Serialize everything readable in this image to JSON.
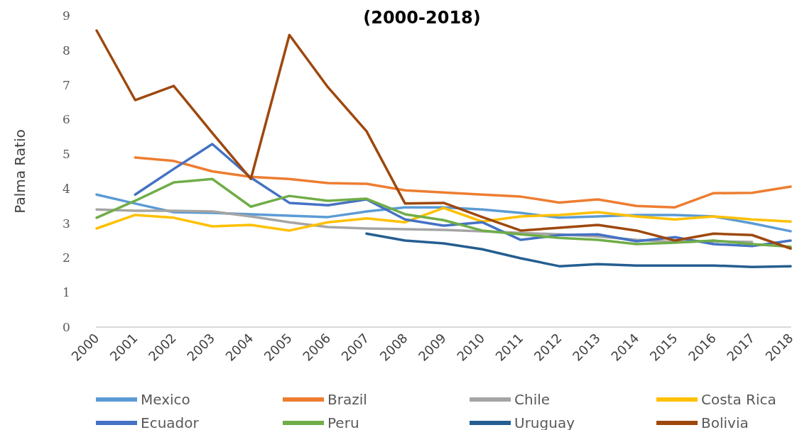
{
  "chart_data": {
    "type": "line",
    "title": "(2000-2018)",
    "ylabel": "Palma Ratio",
    "categories": [
      "2000",
      "2001",
      "2002",
      "2003",
      "2004",
      "2005",
      "2006",
      "2007",
      "2008",
      "2009",
      "2010",
      "2011",
      "2012",
      "2013",
      "2014",
      "2015",
      "2016",
      "2017",
      "2018"
    ],
    "ylim": [
      0,
      9
    ],
    "yticks": [
      0,
      1,
      2,
      3,
      4,
      5,
      6,
      7,
      8,
      9
    ],
    "grid": false,
    "legend": "bottom",
    "marker": "none",
    "line_style": "solid",
    "series": [
      {
        "name": "Mexico",
        "color": "#5b9bd5",
        "values": [
          3.83,
          3.57,
          3.32,
          3.3,
          3.26,
          3.22,
          3.18,
          3.34,
          3.46,
          3.46,
          3.4,
          3.3,
          3.16,
          3.2,
          3.24,
          3.24,
          3.2,
          3.0,
          2.77
        ]
      },
      {
        "name": "Brazil",
        "color": "#ed7d31",
        "values": [
          null,
          4.9,
          4.8,
          4.5,
          4.34,
          4.28,
          4.16,
          4.14,
          3.95,
          3.89,
          3.83,
          3.77,
          3.6,
          3.69,
          3.5,
          3.46,
          3.87,
          3.88,
          4.06
        ]
      },
      {
        "name": "Chile",
        "color": "#a5a5a5",
        "values": [
          3.4,
          3.36,
          3.36,
          3.34,
          3.2,
          3.03,
          2.89,
          2.85,
          2.83,
          2.81,
          2.77,
          2.72,
          2.68,
          2.62,
          2.52,
          2.46,
          2.48,
          2.46,
          null
        ]
      },
      {
        "name": "Costa Rica",
        "color": "#ffc000",
        "values": [
          2.85,
          3.24,
          3.16,
          2.91,
          2.95,
          2.79,
          3.03,
          3.14,
          3.03,
          3.44,
          3.05,
          3.2,
          3.24,
          3.32,
          3.2,
          3.11,
          3.2,
          3.11,
          3.05
        ]
      },
      {
        "name": "Ecuador",
        "color": "#4472c4",
        "values": [
          null,
          3.83,
          4.57,
          5.29,
          4.32,
          3.59,
          3.52,
          3.69,
          3.11,
          2.93,
          3.03,
          2.52,
          2.66,
          2.68,
          2.48,
          2.6,
          2.4,
          2.34,
          2.5
        ]
      },
      {
        "name": "Peru",
        "color": "#70ad47",
        "values": [
          3.16,
          3.65,
          4.18,
          4.28,
          3.48,
          3.79,
          3.65,
          3.71,
          3.26,
          3.09,
          2.79,
          2.68,
          2.58,
          2.52,
          2.4,
          2.44,
          2.5,
          2.4,
          2.32
        ]
      },
      {
        "name": "Uruguay",
        "color": "#255e91",
        "values": [
          null,
          null,
          null,
          null,
          null,
          null,
          null,
          2.7,
          2.5,
          2.42,
          2.25,
          1.99,
          1.76,
          1.82,
          1.78,
          1.78,
          1.78,
          1.74,
          1.76
        ]
      },
      {
        "name": "Bolivia",
        "color": "#9e480e",
        "values": [
          8.57,
          6.56,
          6.97,
          5.61,
          4.28,
          8.44,
          6.93,
          5.66,
          3.57,
          3.59,
          3.18,
          2.79,
          2.87,
          2.95,
          2.79,
          2.5,
          2.7,
          2.66,
          2.27
        ]
      }
    ]
  }
}
